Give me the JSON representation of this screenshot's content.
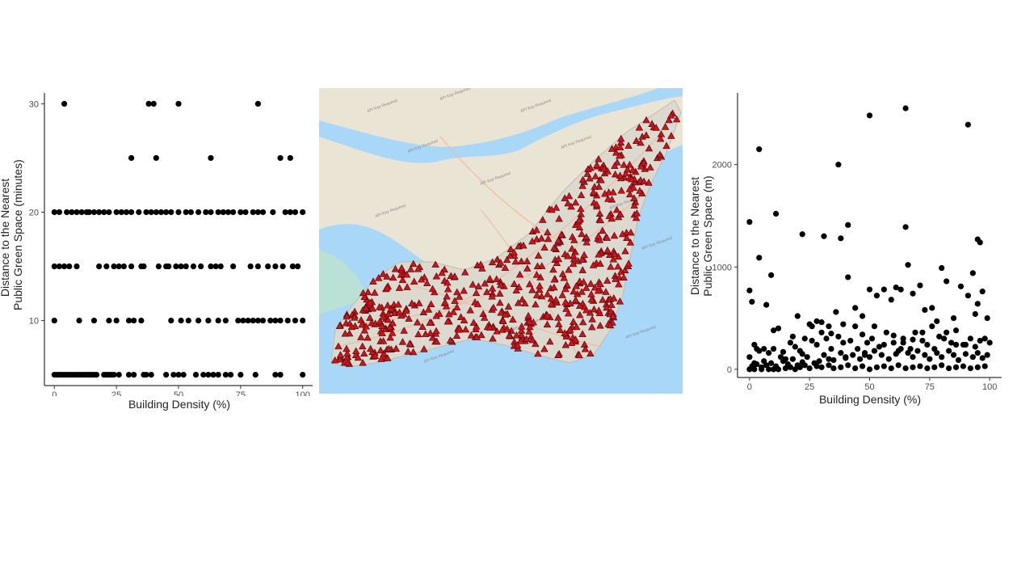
{
  "chart_data": [
    {
      "type": "scatter",
      "xlabel": "Building Density (%)",
      "ylabel_line1": "Distance to the Nearest",
      "ylabel_line2": "Public Green Space (minutes)",
      "xlim": [
        -4,
        104
      ],
      "ylim": [
        4,
        31
      ],
      "xticks": [
        0,
        25,
        50,
        75,
        100
      ],
      "yticks": [
        10,
        20,
        30
      ],
      "grid": false,
      "series": [
        {
          "x": [
            4,
            38,
            40,
            50,
            82,
            31,
            41,
            63,
            91,
            95,
            0,
            2,
            5,
            7,
            9,
            11,
            13,
            14,
            16,
            18,
            20,
            22,
            25,
            27,
            29,
            31,
            34,
            37,
            39,
            41,
            43,
            45,
            47,
            50,
            53,
            55,
            58,
            61,
            63,
            66,
            68,
            70,
            72,
            75,
            77,
            80,
            82,
            84,
            88,
            93,
            95,
            97,
            100,
            0,
            2,
            4,
            6,
            9,
            18,
            21,
            24,
            26,
            28,
            31,
            35,
            36,
            42,
            45,
            46,
            49,
            51,
            53,
            56,
            59,
            63,
            65,
            67,
            72,
            79,
            82,
            86,
            89,
            92,
            96,
            98,
            0,
            10,
            16,
            22,
            25,
            30,
            32,
            35,
            47,
            51,
            54,
            58,
            62,
            66,
            69,
            74,
            76,
            78,
            80,
            82,
            84,
            87,
            89,
            91,
            94,
            97,
            100,
            0,
            1,
            2,
            3,
            4,
            5,
            6,
            7,
            8,
            9,
            10,
            11,
            12,
            13,
            14,
            15,
            16,
            17,
            20,
            21,
            22,
            23,
            24,
            26,
            30,
            32,
            36,
            37,
            39,
            45,
            48,
            50,
            52,
            57,
            60,
            62,
            64,
            66,
            69,
            71,
            75,
            81,
            89,
            91,
            100
          ],
          "y": [
            30,
            30,
            30,
            30,
            30,
            25,
            25,
            25,
            25,
            25,
            20,
            20,
            20,
            20,
            20,
            20,
            20,
            20,
            20,
            20,
            20,
            20,
            20,
            20,
            20,
            20,
            20,
            20,
            20,
            20,
            20,
            20,
            20,
            20,
            20,
            20,
            20,
            20,
            20,
            20,
            20,
            20,
            20,
            20,
            20,
            20,
            20,
            20,
            20,
            20,
            20,
            20,
            20,
            15,
            15,
            15,
            15,
            15,
            15,
            15,
            15,
            15,
            15,
            15,
            15,
            15,
            15,
            15,
            15,
            15,
            15,
            15,
            15,
            15,
            15,
            15,
            15,
            15,
            15,
            15,
            15,
            15,
            15,
            15,
            15,
            10,
            10,
            10,
            10,
            10,
            10,
            10,
            10,
            10,
            10,
            10,
            10,
            10,
            10,
            10,
            10,
            10,
            10,
            10,
            10,
            10,
            10,
            10,
            10,
            10,
            10,
            10,
            5,
            5,
            5,
            5,
            5,
            5,
            5,
            5,
            5,
            5,
            5,
            5,
            5,
            5,
            5,
            5,
            5,
            5,
            5,
            5,
            5,
            5,
            5,
            5,
            5,
            5,
            5,
            5,
            5,
            5,
            5,
            5,
            5,
            5,
            5,
            5,
            5,
            5,
            5,
            5,
            5,
            5,
            5,
            5,
            5
          ]
        }
      ]
    },
    {
      "type": "scatter",
      "xlabel": "Building Density (%)",
      "ylabel_line1": "Distance to the Nearest",
      "ylabel_line2": "Public Green Space (m)",
      "xlim": [
        -5,
        105
      ],
      "ylim": [
        -80,
        2700
      ],
      "xticks": [
        0,
        25,
        50,
        75,
        100
      ],
      "yticks": [
        0,
        1000,
        2000
      ],
      "grid": false,
      "series": [
        {
          "x": [
            0,
            4,
            50,
            65,
            91,
            37,
            11,
            4,
            22,
            31,
            38,
            41,
            65,
            95,
            96,
            0,
            1,
            3,
            7,
            9,
            12,
            20,
            25,
            28,
            33,
            36,
            39,
            41,
            44,
            47,
            50,
            53,
            56,
            59,
            61,
            63,
            66,
            68,
            71,
            73,
            76,
            78,
            80,
            82,
            85,
            88,
            91,
            93,
            95,
            97,
            99,
            0,
            2,
            4,
            6,
            8,
            10,
            13,
            15,
            17,
            19,
            21,
            23,
            26,
            28,
            30,
            32,
            34,
            37,
            39,
            42,
            45,
            47,
            49,
            51,
            54,
            57,
            60,
            62,
            64,
            67,
            69,
            72,
            74,
            77,
            79,
            81,
            84,
            86,
            89,
            92,
            94,
            96,
            98,
            100,
            1,
            3,
            5,
            7,
            9,
            11,
            14,
            16,
            18,
            20,
            22,
            24,
            27,
            29,
            31,
            33,
            35,
            38,
            40,
            43,
            46,
            48,
            50,
            52,
            55,
            58,
            61,
            63,
            66,
            68,
            70,
            73,
            75,
            78,
            80,
            83,
            85,
            87,
            90,
            93,
            95,
            97,
            99,
            0,
            2,
            5,
            8,
            10,
            12,
            15,
            17,
            19,
            21,
            23,
            25,
            28,
            30,
            33,
            35,
            38,
            41,
            44,
            47,
            50,
            53,
            56,
            59,
            62,
            65,
            68,
            71,
            74,
            77,
            80,
            83,
            86,
            89,
            92,
            95,
            98,
            2,
            6,
            10,
            14,
            18,
            22,
            26,
            30,
            34,
            40,
            44,
            48,
            52,
            56,
            60,
            64,
            68,
            72,
            76,
            82,
            86,
            90,
            94
          ],
          "y": [
            1440,
            2150,
            2480,
            2550,
            2390,
            2000,
            1520,
            1090,
            1320,
            1300,
            1280,
            1410,
            1390,
            1270,
            1240,
            770,
            660,
            200,
            630,
            920,
            400,
            520,
            440,
            470,
            420,
            560,
            440,
            900,
            600,
            520,
            780,
            720,
            780,
            680,
            800,
            780,
            1020,
            740,
            820,
            580,
            600,
            470,
            990,
            860,
            500,
            810,
            720,
            940,
            640,
            760,
            500,
            120,
            60,
            180,
            80,
            160,
            200,
            120,
            100,
            260,
            220,
            180,
            300,
            280,
            240,
            360,
            300,
            200,
            320,
            260,
            280,
            200,
            340,
            260,
            300,
            220,
            360,
            260,
            180,
            300,
            200,
            360,
            280,
            240,
            200,
            320,
            300,
            260,
            380,
            240,
            300,
            220,
            280,
            300,
            260,
            30,
            50,
            20,
            40,
            60,
            30,
            80,
            50,
            100,
            40,
            70,
            120,
            60,
            80,
            140,
            100,
            90,
            160,
            120,
            140,
            100,
            160,
            120,
            180,
            140,
            100,
            150,
            200,
            160,
            120,
            180,
            140,
            100,
            160,
            120,
            180,
            140,
            90,
            150,
            120,
            160,
            110,
            140,
            0,
            0,
            0,
            0,
            0,
            0,
            10,
            20,
            0,
            20,
            40,
            10,
            30,
            20,
            40,
            10,
            20,
            40,
            10,
            30,
            0,
            20,
            30,
            10,
            40,
            10,
            20,
            30,
            10,
            20,
            40,
            10,
            20,
            30,
            10,
            20,
            30,
            240,
            200,
            380,
            170,
            320,
            150,
            420,
            460,
            350,
            110,
            420,
            140,
            420,
            240,
            330,
            260,
            290,
            360,
            420,
            360,
            240,
            240,
            540
          ]
        }
      ]
    }
  ],
  "map": {
    "water_color": "#a9d7f7",
    "land_color": "#eae4d4",
    "island_color": "#dcd9cf",
    "marker_color": "#d0121b",
    "marker_outline": "#3a0508",
    "watermark_text": "API Key Required"
  }
}
